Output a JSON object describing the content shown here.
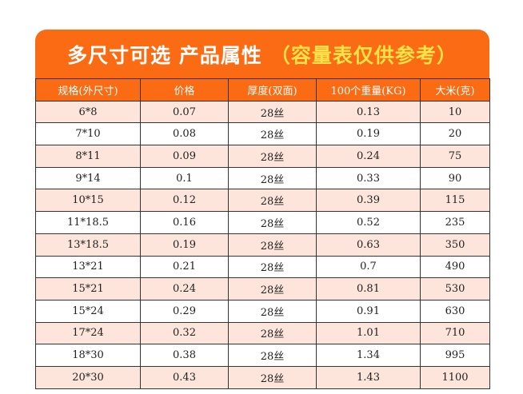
{
  "banner": {
    "title": "多尺寸可选 产品属性",
    "subtitle": "（容量表仅供参考）"
  },
  "table": {
    "headers": [
      "规格(外尺寸)",
      "价格",
      "厚度(双面)",
      "100个重量(KG)",
      "大米(克)"
    ],
    "rows": [
      [
        "6*8",
        "0.07",
        "28丝",
        "0.13",
        "10"
      ],
      [
        "7*10",
        "0.08",
        "28丝",
        "0.19",
        "20"
      ],
      [
        "8*11",
        "0.09",
        "28丝",
        "0.24",
        "75"
      ],
      [
        "9*14",
        "0.1",
        "28丝",
        "0.33",
        "90"
      ],
      [
        "10*15",
        "0.12",
        "28丝",
        "0.39",
        "115"
      ],
      [
        "11*18.5",
        "0.16",
        "28丝",
        "0.52",
        "235"
      ],
      [
        "13*18.5",
        "0.19",
        "28丝",
        "0.63",
        "350"
      ],
      [
        "13*21",
        "0.21",
        "28丝",
        "0.7",
        "490"
      ],
      [
        "15*21",
        "0.24",
        "28丝",
        "0.81",
        "530"
      ],
      [
        "15*24",
        "0.29",
        "28丝",
        "0.91",
        "630"
      ],
      [
        "17*24",
        "0.32",
        "28丝",
        "1.01",
        "710"
      ],
      [
        "18*30",
        "0.38",
        "28丝",
        "1.34",
        "995"
      ],
      [
        "20*30",
        "0.43",
        "28丝",
        "1.43",
        "1100"
      ]
    ]
  },
  "colors": {
    "accent": "#fa6b14",
    "subtitle": "#ffe24a",
    "row_tint": "#fde5dc"
  }
}
